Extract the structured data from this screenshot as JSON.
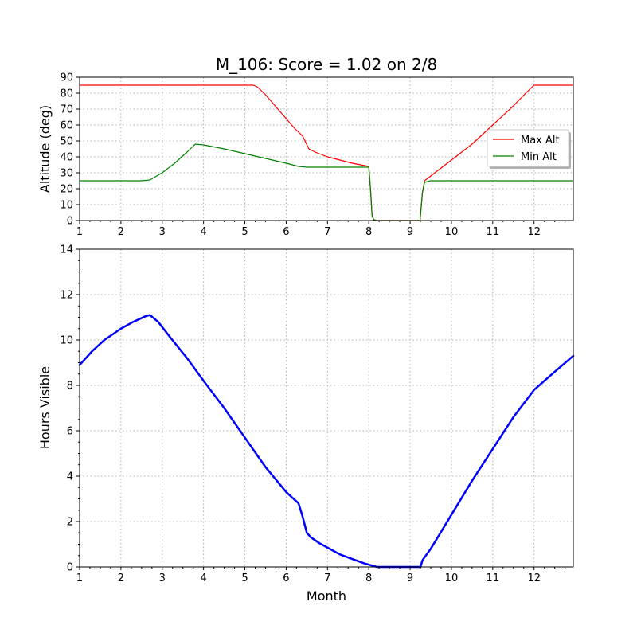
{
  "chart_data": [
    {
      "type": "line",
      "title": "M_106: Score = 1.02 on 2/8",
      "xlabel": "",
      "ylabel": "Altitude (deg)",
      "xlim": [
        1,
        12.95
      ],
      "ylim": [
        0,
        90
      ],
      "xticks": [
        1,
        2,
        3,
        4,
        5,
        6,
        7,
        8,
        9,
        10,
        11,
        12
      ],
      "yticks": [
        0,
        10,
        20,
        30,
        40,
        50,
        60,
        70,
        80,
        90
      ],
      "grid": true,
      "legend": "right",
      "series": [
        {
          "name": "Max Alt",
          "color": "#ff0000",
          "x": [
            1.0,
            1.5,
            2.0,
            2.5,
            3.0,
            3.5,
            4.0,
            4.5,
            5.0,
            5.2,
            5.3,
            5.5,
            5.7,
            6.0,
            6.2,
            6.4,
            6.55,
            6.7,
            7.0,
            7.3,
            7.6,
            8.0,
            8.04,
            8.08,
            8.12,
            8.2,
            8.5,
            9.0,
            9.24,
            9.3,
            9.35,
            9.5,
            9.7,
            10.0,
            10.5,
            11.0,
            11.5,
            11.8,
            12.0,
            12.5,
            12.95
          ],
          "y": [
            85,
            85,
            85,
            85,
            85,
            85,
            85,
            85,
            85,
            85,
            84,
            79,
            73,
            64,
            58,
            53,
            45,
            43,
            40,
            38,
            36,
            34,
            20,
            3,
            0.5,
            0,
            0,
            0,
            0,
            18,
            25,
            28,
            32,
            38,
            48,
            60,
            72,
            80,
            85,
            85,
            85
          ]
        },
        {
          "name": "Min Alt",
          "color": "#008000",
          "x": [
            1.0,
            1.5,
            2.0,
            2.5,
            2.7,
            2.8,
            3.0,
            3.3,
            3.6,
            3.8,
            4.0,
            4.5,
            5.0,
            5.5,
            6.0,
            6.3,
            6.5,
            7.0,
            7.5,
            8.0,
            8.04,
            8.08,
            8.12,
            8.2,
            8.5,
            9.0,
            9.24,
            9.3,
            9.35,
            9.5,
            10.0,
            11.0,
            12.0,
            12.95
          ],
          "y": [
            25,
            25,
            25,
            25,
            25.5,
            27,
            30,
            36,
            43,
            48,
            47.5,
            45,
            42,
            39,
            36,
            34,
            33.5,
            33.5,
            33.5,
            33.5,
            20,
            3,
            0.5,
            0,
            0,
            0,
            0,
            18,
            24,
            25,
            25,
            25,
            25,
            25
          ]
        }
      ]
    },
    {
      "type": "line",
      "title": "",
      "xlabel": "Month",
      "ylabel": "Hours Visible",
      "xlim": [
        1,
        12.95
      ],
      "ylim": [
        0,
        14
      ],
      "xticks": [
        1,
        2,
        3,
        4,
        5,
        6,
        7,
        8,
        9,
        10,
        11,
        12
      ],
      "yticks": [
        0,
        2,
        4,
        6,
        8,
        10,
        12,
        14
      ],
      "grid": true,
      "series": [
        {
          "color": "#0000ff",
          "x": [
            1.0,
            1.3,
            1.6,
            2.0,
            2.3,
            2.6,
            2.7,
            2.9,
            3.2,
            3.6,
            4.0,
            4.5,
            5.0,
            5.5,
            6.0,
            6.3,
            6.4,
            6.5,
            6.6,
            6.8,
            7.0,
            7.3,
            7.6,
            7.9,
            8.1,
            8.2,
            9.0,
            9.25,
            9.3,
            9.5,
            9.7,
            10.0,
            10.5,
            11.0,
            11.5,
            12.0,
            12.5,
            12.95
          ],
          "y": [
            8.9,
            9.5,
            10.0,
            10.5,
            10.8,
            11.05,
            11.1,
            10.8,
            10.1,
            9.2,
            8.2,
            7.0,
            5.7,
            4.4,
            3.3,
            2.8,
            2.2,
            1.5,
            1.3,
            1.05,
            0.85,
            0.55,
            0.35,
            0.15,
            0.05,
            0,
            0,
            0,
            0.3,
            0.8,
            1.4,
            2.3,
            3.8,
            5.2,
            6.6,
            7.8,
            8.6,
            9.3
          ]
        }
      ]
    }
  ]
}
